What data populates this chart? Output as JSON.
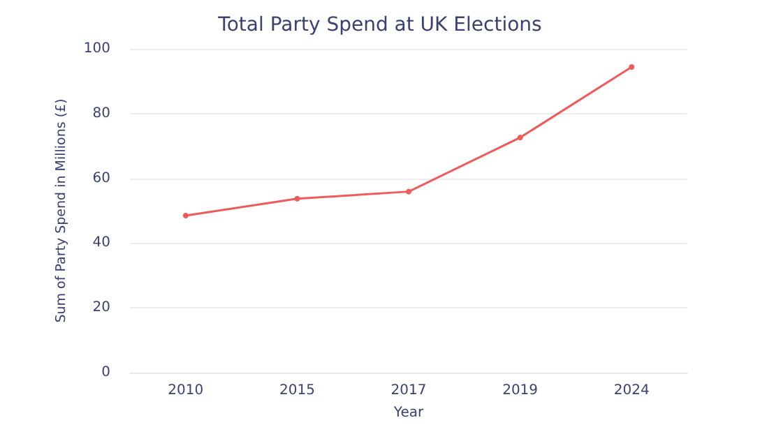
{
  "chart_data": {
    "type": "line",
    "title": "Total Party Spend at UK Elections",
    "xlabel": "Year",
    "ylabel": "Sum of Party Spend in Millions (£)",
    "categories": [
      "2010",
      "2015",
      "2017",
      "2019",
      "2024"
    ],
    "series": [
      {
        "color": "#ef5b5b",
        "values": [
          48.5,
          53.7,
          55.9,
          72.6,
          94.4
        ]
      }
    ],
    "ylim": [
      0,
      100
    ],
    "yticks": [
      0,
      20,
      40,
      60,
      80,
      100
    ],
    "grid": "y",
    "marker": "circle",
    "line_style": "solid"
  }
}
